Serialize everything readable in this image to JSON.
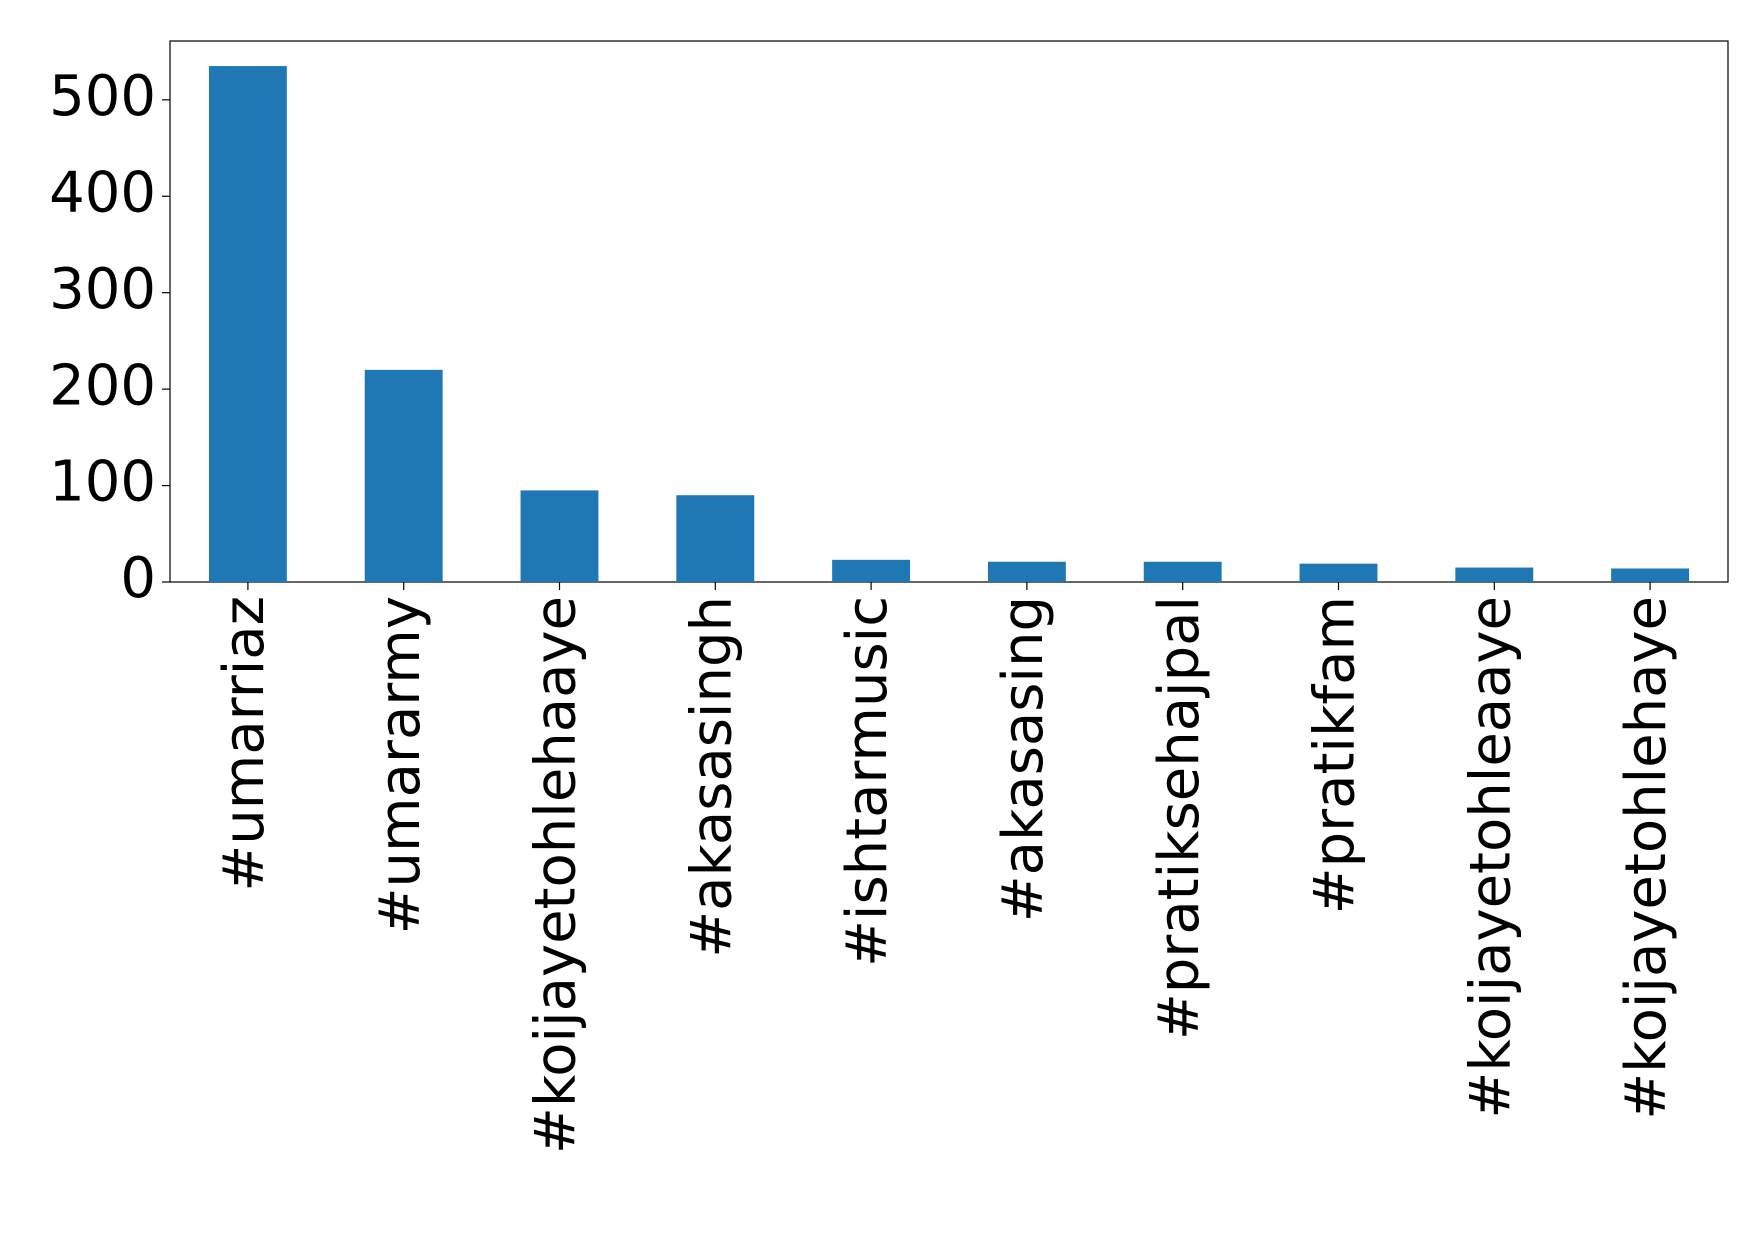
{
  "chart_data": {
    "type": "bar",
    "categories": [
      "#umarriaz",
      "#umararmy",
      "#koijayetohlehaaye",
      "#akasasingh",
      "#ishtarmusic",
      "#akasasing",
      "#pratiksehajpal",
      "#pratikfam",
      "#koijayetohleaaye",
      "#koijayetohlehaye"
    ],
    "values": [
      535,
      220,
      95,
      90,
      23,
      21,
      21,
      19,
      15,
      14
    ],
    "color": "#1f77b4",
    "ylim": [
      0,
      561
    ],
    "yticks": [
      0,
      100,
      200,
      300,
      400,
      500
    ],
    "grid": false
  }
}
